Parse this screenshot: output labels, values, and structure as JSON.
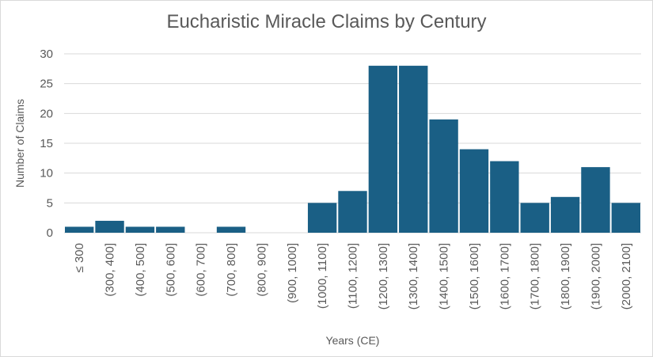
{
  "chart_data": {
    "type": "bar",
    "title": "Eucharistic Miracle Claims by Century",
    "xlabel": "Years (CE)",
    "ylabel": "Number of Claims",
    "ylim": [
      0,
      30
    ],
    "yticks": [
      0,
      5,
      10,
      15,
      20,
      25,
      30
    ],
    "grid": true,
    "legend": "none",
    "bar_color": "#1a5f85",
    "categories": [
      "≤ 300",
      "(300, 400]",
      "(400, 500]",
      "(500, 600]",
      "(600, 700]",
      "(700, 800]",
      "(800, 900]",
      "(900, 1000]",
      "(1000, 1100]",
      "(1100, 1200]",
      "(1200, 1300]",
      "(1300, 1400]",
      "(1400, 1500]",
      "(1500, 1600]",
      "(1600, 1700]",
      "(1700, 1800]",
      "(1800, 1900]",
      "(1900, 2000]",
      "(2000, 2100]"
    ],
    "values": [
      1,
      2,
      1,
      1,
      0,
      1,
      0,
      0,
      5,
      7,
      28,
      28,
      19,
      14,
      12,
      5,
      6,
      11,
      5
    ]
  }
}
